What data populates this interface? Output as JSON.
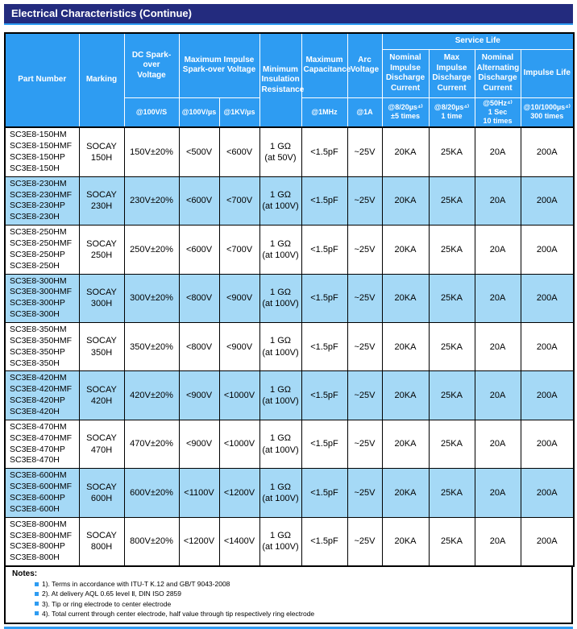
{
  "page": {
    "title": "Electrical Characteristics (Continue)"
  },
  "colors": {
    "title_bar_bg": "#232b7e",
    "header_bg": "#2e9cf2",
    "alt_row_bg": "#a5d9f6",
    "accent": "#2e9cf2",
    "grid_border": "#000000"
  },
  "table": {
    "header": {
      "part_number": "Part Number",
      "marking": "Marking",
      "dc_sparkover": "DC Spark-over\nVoltage",
      "max_impulse_sparkover": "Maximum Impulse\nSpark-over Voltage",
      "min_insulation": "Minimum\nInsulation\nResistance",
      "max_capacitance": "Maximum\nCapacitance",
      "arc_voltage": "Arc\nVoltage",
      "service_life": "Service Life",
      "nominal_impulse_discharge": "Nominal\nImpulse\nDischarge\nCurrent",
      "max_impulse_discharge": "Max Impulse\nDischarge\nCurrent",
      "nominal_alternating_discharge": "Nominal\nAlternating\nDischarge\nCurrent",
      "impulse_life": "Impulse Life",
      "sub": {
        "dc": "@100V/S",
        "impulse_100v": "@100V/µs",
        "impulse_1kv": "@1KV/µs",
        "capacitance": "@1MHz",
        "arc": "@1A",
        "nominal_impulse": "@8/20µs⁴⁾\n±5 times",
        "max_impulse": "@8/20µs⁴⁾\n1 time",
        "nominal_alternating": "@50Hz⁴⁾\n1 Sec\n10 times",
        "impulse_life": "@10/1000µs⁴⁾\n300 times"
      }
    },
    "cell_names": [
      "part-number-cell",
      "marking-cell",
      "dc-sparkover-voltage-cell",
      "impulse-sparkover-100vus-cell",
      "impulse-sparkover-1kvus-cell",
      "insulation-resistance-cell",
      "capacitance-cell",
      "arc-voltage-cell",
      "nominal-impulse-discharge-cell",
      "max-impulse-discharge-cell",
      "nominal-alternating-discharge-cell",
      "impulse-life-cell"
    ],
    "rows": [
      [
        "SC3E8-150HM\nSC3E8-150HMF\nSC3E8-150HP\nSC3E8-150H",
        "SOCAY\n150H",
        "150V±20%",
        "<500V",
        "<600V",
        "1 GΩ\n(at 50V)",
        "<1.5pF",
        "~25V",
        "20KA",
        "25KA",
        "20A",
        "200A"
      ],
      [
        "SC3E8-230HM\nSC3E8-230HMF\nSC3E8-230HP\nSC3E8-230H",
        "SOCAY\n230H",
        "230V±20%",
        "<600V",
        "<700V",
        "1 GΩ\n(at 100V)",
        "<1.5pF",
        "~25V",
        "20KA",
        "25KA",
        "20A",
        "200A"
      ],
      [
        "SC3E8-250HM\nSC3E8-250HMF\nSC3E8-250HP\nSC3E8-250H",
        "SOCAY\n250H",
        "250V±20%",
        "<600V",
        "<700V",
        "1 GΩ\n(at 100V)",
        "<1.5pF",
        "~25V",
        "20KA",
        "25KA",
        "20A",
        "200A"
      ],
      [
        "SC3E8-300HM\nSC3E8-300HMF\nSC3E8-300HP\nSC3E8-300H",
        "SOCAY\n300H",
        "300V±20%",
        "<800V",
        "<900V",
        "1 GΩ\n(at 100V)",
        "<1.5pF",
        "~25V",
        "20KA",
        "25KA",
        "20A",
        "200A"
      ],
      [
        "SC3E8-350HM\nSC3E8-350HMF\nSC3E8-350HP\nSC3E8-350H",
        "SOCAY\n350H",
        "350V±20%",
        "<800V",
        "<900V",
        "1 GΩ\n(at 100V)",
        "<1.5pF",
        "~25V",
        "20KA",
        "25KA",
        "20A",
        "200A"
      ],
      [
        "SC3E8-420HM\nSC3E8-420HMF\nSC3E8-420HP\nSC3E8-420H",
        "SOCAY\n420H",
        "420V±20%",
        "<900V",
        "<1000V",
        "1 GΩ\n(at 100V)",
        "<1.5pF",
        "~25V",
        "20KA",
        "25KA",
        "20A",
        "200A"
      ],
      [
        "SC3E8-470HM\nSC3E8-470HMF\nSC3E8-470HP\nSC3E8-470H",
        "SOCAY\n470H",
        "470V±20%",
        "<900V",
        "<1000V",
        "1 GΩ\n(at 100V)",
        "<1.5pF",
        "~25V",
        "20KA",
        "25KA",
        "20A",
        "200A"
      ],
      [
        "SC3E8-600HM\nSC3E8-600HMF\nSC3E8-600HP\nSC3E8-600H",
        "SOCAY\n600H",
        "600V±20%",
        "<1100V",
        "<1200V",
        "1 GΩ\n(at 100V)",
        "<1.5pF",
        "~25V",
        "20KA",
        "25KA",
        "20A",
        "200A"
      ],
      [
        "SC3E8-800HM\nSC3E8-800HMF\nSC3E8-800HP\nSC3E8-800H",
        "SOCAY\n800H",
        "800V±20%",
        "<1200V",
        "<1400V",
        "1 GΩ\n(at 100V)",
        "<1.5pF",
        "~25V",
        "20KA",
        "25KA",
        "20A",
        "200A"
      ]
    ]
  },
  "notes": {
    "title": "Notes:",
    "items": [
      "1). Terms in accordance with ITU-T K.12 and GB/T 9043-2008",
      "2). At delivery AQL 0.65 level Ⅱ, DIN ISO 2859",
      "3). Tip or ring electrode to center electrode",
      "4). Total current through center electrode, half value through tip respectively ring electrode"
    ]
  }
}
